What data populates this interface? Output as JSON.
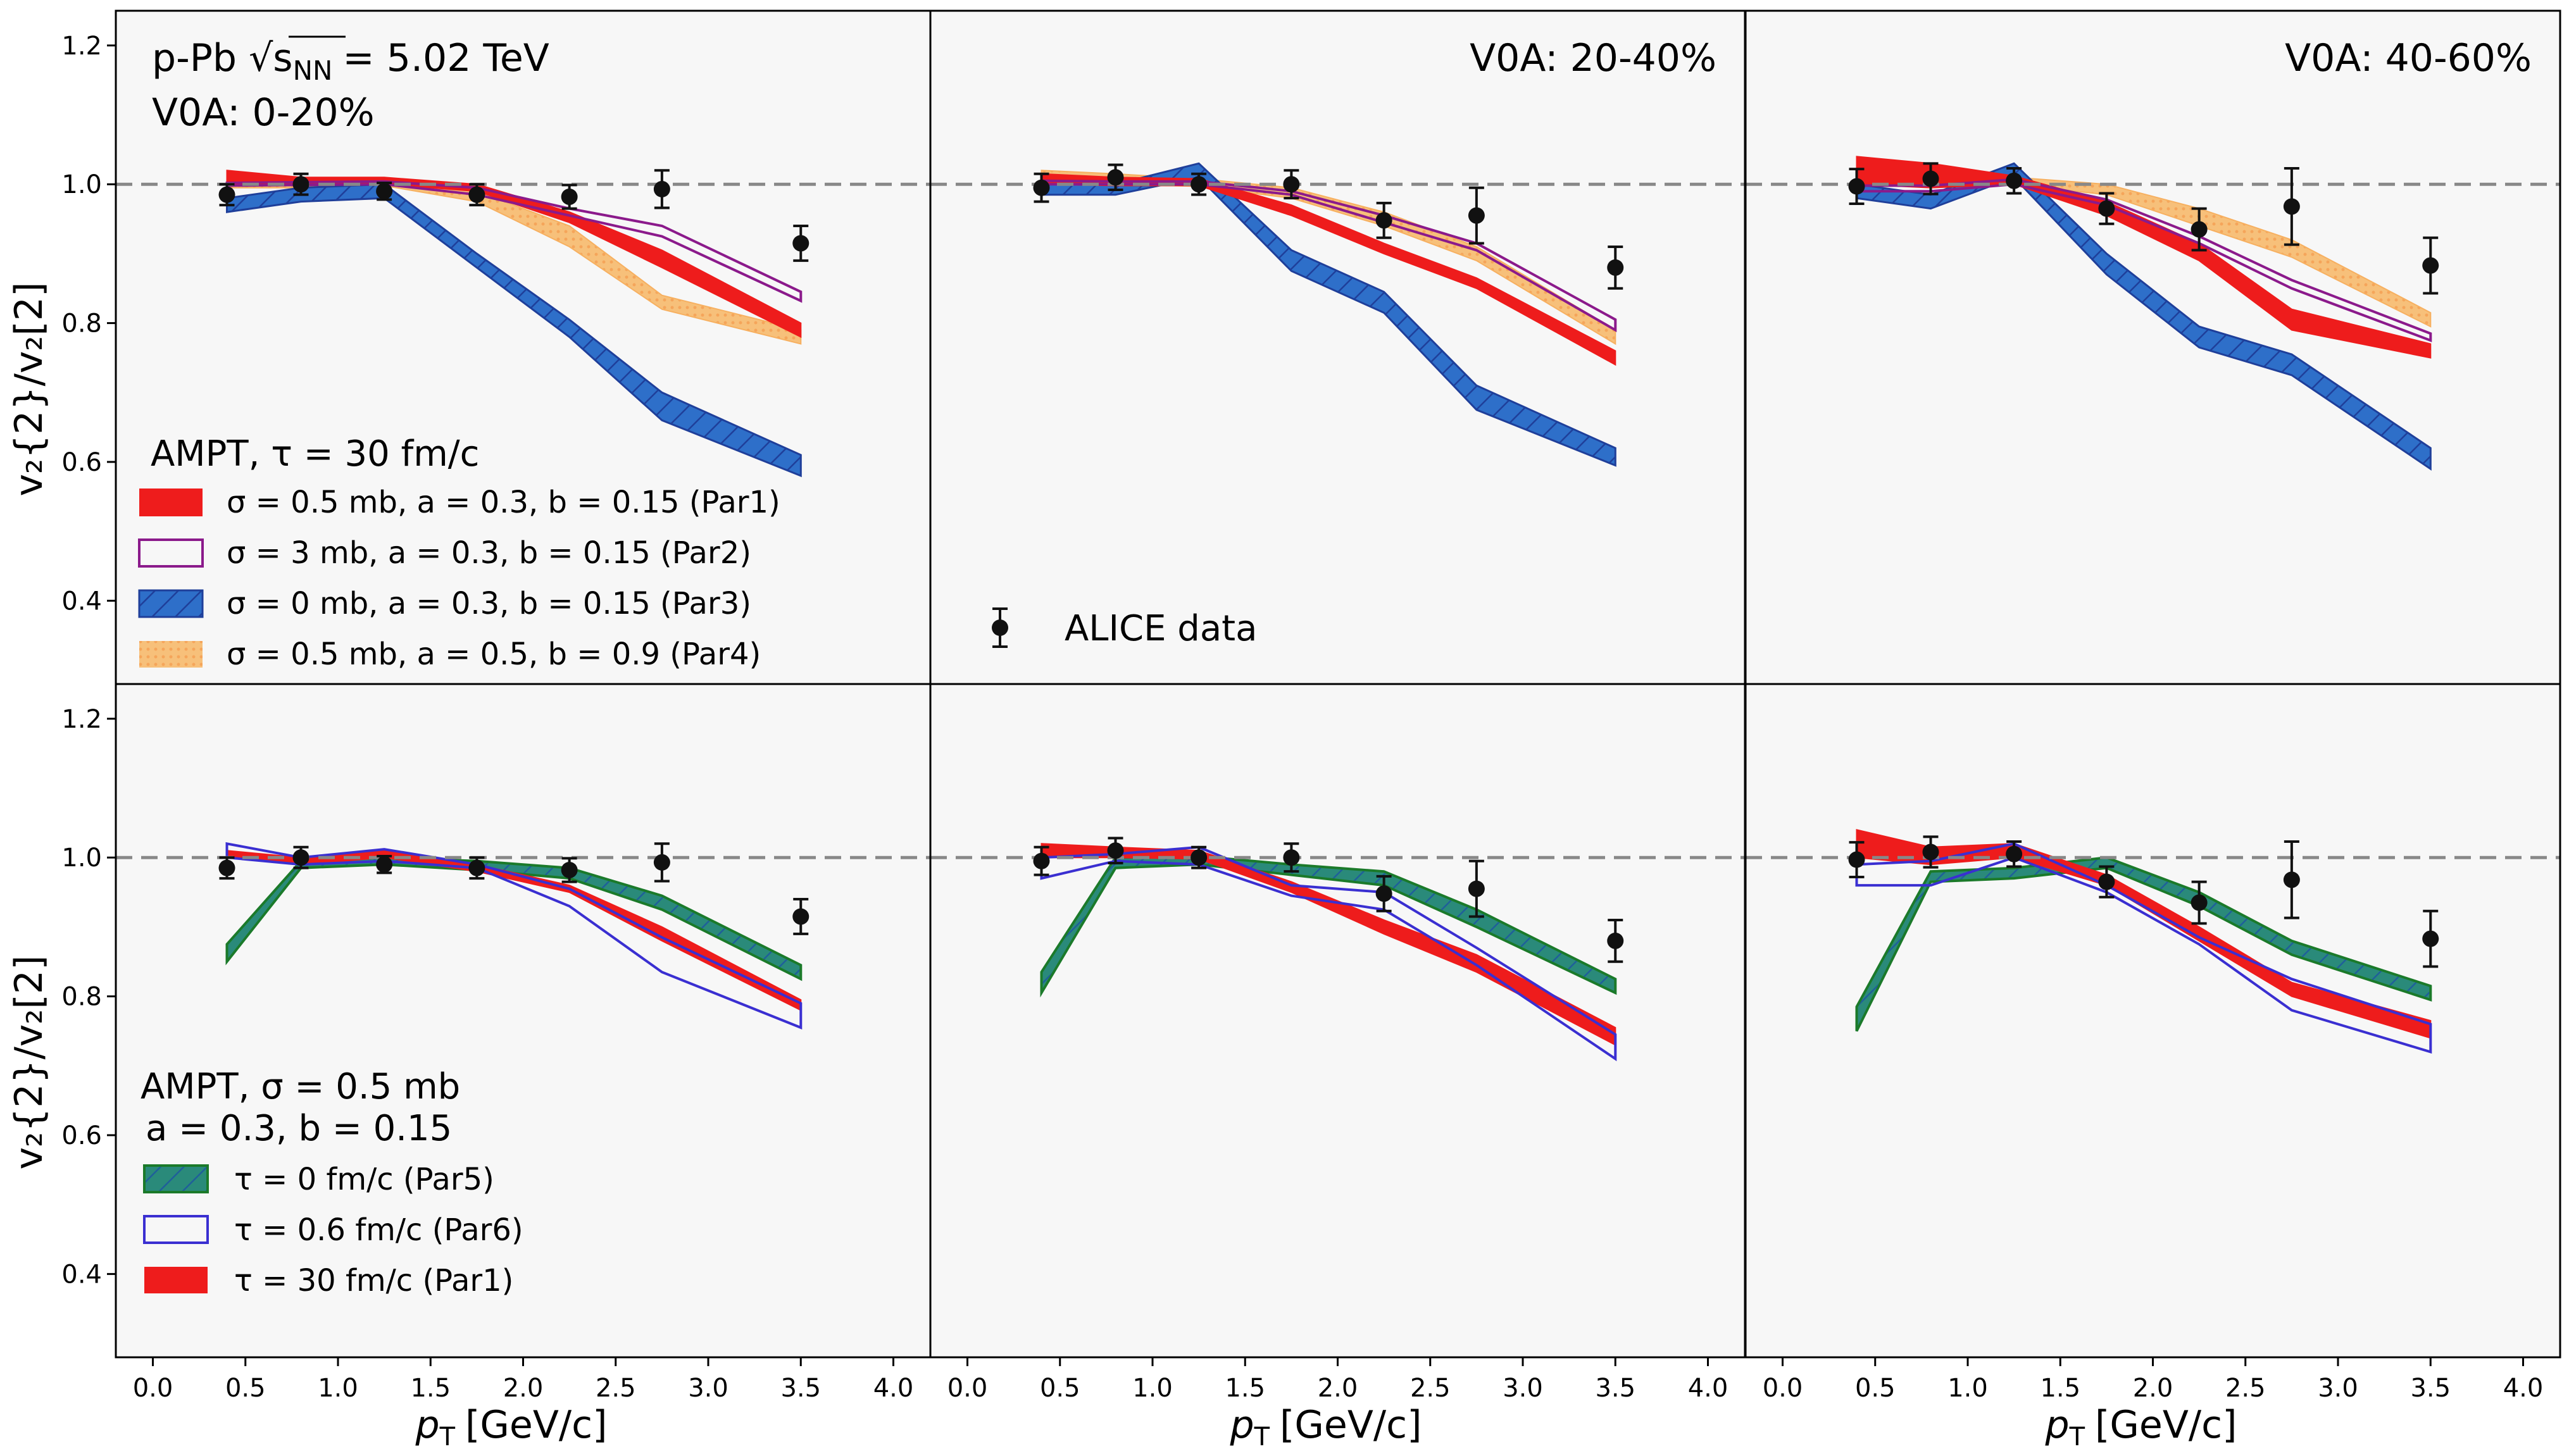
{
  "chart_data": {
    "type": "line",
    "figure_annotation": {
      "line1": "p-Pb √s",
      "sub": "NN",
      "line1b": "= 5.02 TeV"
    },
    "xlabel": {
      "main": "p",
      "sub": "T",
      "rest": "[GeV/c]"
    },
    "ylabel": "v₂{2}/v₂[2]",
    "xlim": [
      -0.2,
      4.2
    ],
    "ylim": [
      0.28,
      1.25
    ],
    "xticks": [
      "0.0",
      "0.5",
      "1.0",
      "1.5",
      "2.0",
      "2.5",
      "3.0",
      "3.5",
      "4.0"
    ],
    "yticks": [
      "0.4",
      "0.6",
      "0.8",
      "1.0",
      "1.2"
    ],
    "reference_line": 1.0,
    "colors": {
      "par1": "#ee1c1c",
      "par2": "#8b1a8b",
      "par3": "#2e6fc9",
      "par3_edge": "#1f3f9a",
      "par4": "#f7c07a",
      "par5": "#2a8a7a",
      "par5_edge": "#1b7a2a",
      "par6": "#3a2fd1",
      "data": "#111111"
    },
    "legend_top": {
      "title": "AMPT, τ = 30 fm/c",
      "entries": [
        "σ = 0.5 mb, a = 0.3, b = 0.15 (Par1)",
        "σ = 3 mb, a = 0.3, b = 0.15 (Par2)",
        "σ = 0 mb, a = 0.3, b = 0.15 (Par3)",
        "σ = 0.5 mb, a = 0.5, b = 0.9 (Par4)"
      ]
    },
    "legend_bottom": {
      "title": "AMPT, σ = 0.5 mb",
      "title2": "a = 0.3, b = 0.15",
      "entries": [
        "τ = 0 fm/c (Par5)",
        "τ = 0.6 fm/c (Par6)",
        "τ = 30 fm/c (Par1)"
      ]
    },
    "data_legend": "ALICE data",
    "panels": [
      {
        "label": "V0A: 0-20%",
        "row": 0,
        "col": 0,
        "data": {
          "x": [
            0.4,
            0.8,
            1.25,
            1.75,
            2.25,
            2.75,
            3.5
          ],
          "y": [
            0.985,
            1.0,
            0.99,
            0.985,
            0.982,
            0.993,
            0.915
          ],
          "err": [
            0.015,
            0.015,
            0.012,
            0.015,
            0.017,
            0.027,
            0.025
          ]
        },
        "bands": [
          {
            "id": "par4",
            "style": "fill",
            "x": [
              0.4,
              0.8,
              1.25,
              1.75,
              2.25,
              2.75,
              3.5
            ],
            "lo": [
              0.995,
              0.995,
              0.998,
              0.975,
              0.91,
              0.82,
              0.77
            ],
            "hi": [
              1.01,
              1.007,
              1.008,
              0.99,
              0.94,
              0.84,
              0.79
            ]
          },
          {
            "id": "par3",
            "style": "hatch",
            "x": [
              0.4,
              0.8,
              1.25,
              1.75,
              2.25,
              2.75,
              3.5
            ],
            "lo": [
              0.96,
              0.975,
              0.98,
              0.88,
              0.78,
              0.66,
              0.58
            ],
            "hi": [
              0.98,
              0.995,
              1.0,
              0.9,
              0.805,
              0.7,
              0.61
            ]
          },
          {
            "id": "par1",
            "style": "fill",
            "x": [
              0.4,
              0.8,
              1.25,
              1.75,
              2.25,
              2.75,
              3.5
            ],
            "lo": [
              1.0,
              0.998,
              1.0,
              0.99,
              0.945,
              0.88,
              0.78
            ],
            "hi": [
              1.02,
              1.01,
              1.01,
              1.0,
              0.96,
              0.905,
              0.8
            ]
          },
          {
            "id": "par2",
            "style": "outline",
            "x": [
              0.4,
              0.8,
              1.25,
              1.75,
              2.25,
              2.75,
              3.5
            ],
            "lo": [
              0.998,
              0.999,
              1.0,
              0.985,
              0.955,
              0.925,
              0.832
            ],
            "hi": [
              1.002,
              1.003,
              1.004,
              0.995,
              0.965,
              0.94,
              0.845
            ]
          }
        ]
      },
      {
        "label": "V0A: 20-40%",
        "row": 0,
        "col": 1,
        "data": {
          "x": [
            0.4,
            0.8,
            1.25,
            1.75,
            2.25,
            2.75,
            3.5
          ],
          "y": [
            0.995,
            1.01,
            1.0,
            1.0,
            0.948,
            0.955,
            0.88
          ],
          "err": [
            0.02,
            0.018,
            0.015,
            0.02,
            0.025,
            0.04,
            0.03
          ]
        },
        "bands": [
          {
            "id": "par4",
            "style": "fill",
            "x": [
              0.4,
              0.8,
              1.25,
              1.75,
              2.25,
              2.75,
              3.5
            ],
            "lo": [
              1.0,
              1.0,
              0.997,
              0.98,
              0.94,
              0.89,
              0.77
            ],
            "hi": [
              1.02,
              1.015,
              1.008,
              0.995,
              0.96,
              0.91,
              0.79
            ]
          },
          {
            "id": "par3",
            "style": "hatch",
            "x": [
              0.4,
              0.8,
              1.25,
              1.75,
              2.25,
              2.75,
              3.5
            ],
            "lo": [
              0.985,
              0.985,
              1.01,
              0.875,
              0.815,
              0.675,
              0.595
            ],
            "hi": [
              1.005,
              1.0,
              1.03,
              0.905,
              0.845,
              0.71,
              0.62
            ]
          },
          {
            "id": "par1",
            "style": "fill",
            "x": [
              0.4,
              0.8,
              1.25,
              1.75,
              2.25,
              2.75,
              3.5
            ],
            "lo": [
              1.0,
              0.998,
              0.998,
              0.955,
              0.9,
              0.85,
              0.74
            ],
            "hi": [
              1.015,
              1.01,
              1.008,
              0.97,
              0.915,
              0.865,
              0.76
            ]
          },
          {
            "id": "par2",
            "style": "outline",
            "x": [
              0.4,
              0.8,
              1.25,
              1.75,
              2.25,
              2.75,
              3.5
            ],
            "lo": [
              1.0,
              1.0,
              1.0,
              0.985,
              0.945,
              0.905,
              0.79
            ],
            "hi": [
              1.005,
              1.004,
              1.004,
              0.99,
              0.955,
              0.915,
              0.805
            ]
          }
        ]
      },
      {
        "label": "V0A: 40-60%",
        "row": 0,
        "col": 2,
        "data": {
          "x": [
            0.4,
            0.8,
            1.25,
            1.75,
            2.25,
            2.75,
            3.5
          ],
          "y": [
            0.997,
            1.008,
            1.005,
            0.965,
            0.935,
            0.968,
            0.883
          ],
          "err": [
            0.025,
            0.022,
            0.018,
            0.022,
            0.03,
            0.055,
            0.04
          ]
        },
        "bands": [
          {
            "id": "par4",
            "style": "fill",
            "x": [
              0.4,
              0.8,
              1.25,
              1.75,
              2.25,
              2.75,
              3.5
            ],
            "lo": [
              1.0,
              0.998,
              1.0,
              0.985,
              0.94,
              0.895,
              0.795
            ],
            "hi": [
              1.02,
              1.01,
              1.01,
              1.0,
              0.965,
              0.92,
              0.815
            ]
          },
          {
            "id": "par3",
            "style": "hatch",
            "x": [
              0.4,
              0.8,
              1.25,
              1.75,
              2.25,
              2.75,
              3.5
            ],
            "lo": [
              0.98,
              0.965,
              1.01,
              0.87,
              0.765,
              0.725,
              0.59
            ],
            "hi": [
              1.0,
              0.985,
              1.03,
              0.9,
              0.795,
              0.755,
              0.62
            ]
          },
          {
            "id": "par1",
            "style": "fill",
            "x": [
              0.4,
              0.8,
              1.25,
              1.75,
              2.25,
              2.75,
              3.5
            ],
            "lo": [
              1.0,
              0.995,
              1.0,
              0.955,
              0.89,
              0.79,
              0.75
            ],
            "hi": [
              1.04,
              1.03,
              1.012,
              0.975,
              0.915,
              0.82,
              0.77
            ]
          },
          {
            "id": "par2",
            "style": "outline",
            "x": [
              0.4,
              0.8,
              1.25,
              1.75,
              2.25,
              2.75,
              3.5
            ],
            "lo": [
              0.99,
              0.99,
              1.0,
              0.97,
              0.915,
              0.85,
              0.775
            ],
            "hi": [
              0.998,
              0.998,
              1.007,
              0.978,
              0.925,
              0.862,
              0.785
            ]
          }
        ]
      },
      {
        "label": "",
        "row": 1,
        "col": 0,
        "data": {
          "x": [
            0.4,
            0.8,
            1.25,
            1.75,
            2.25,
            2.75,
            3.5
          ],
          "y": [
            0.985,
            1.0,
            0.99,
            0.985,
            0.982,
            0.993,
            0.915
          ],
          "err": [
            0.015,
            0.015,
            0.012,
            0.015,
            0.017,
            0.027,
            0.025
          ]
        },
        "bands": [
          {
            "id": "par5",
            "style": "hatch2",
            "x": [
              0.4,
              0.8,
              1.25,
              1.75,
              2.25,
              2.75,
              3.5
            ],
            "lo": [
              0.85,
              0.985,
              0.99,
              0.982,
              0.97,
              0.925,
              0.825
            ],
            "hi": [
              0.875,
              0.995,
              1.0,
              0.995,
              0.985,
              0.945,
              0.845
            ]
          },
          {
            "id": "par1",
            "style": "fill",
            "x": [
              0.4,
              0.8,
              1.25,
              1.75,
              2.25,
              2.75,
              3.5
            ],
            "lo": [
              1.0,
              0.99,
              1.0,
              0.98,
              0.95,
              0.88,
              0.78
            ],
            "hi": [
              1.01,
              1.0,
              1.01,
              0.99,
              0.96,
              0.9,
              0.795
            ]
          },
          {
            "id": "par6",
            "style": "outline",
            "x": [
              0.4,
              0.8,
              1.25,
              1.75,
              2.25,
              2.75,
              3.5
            ],
            "lo": [
              1.0,
              0.99,
              0.995,
              0.985,
              0.93,
              0.835,
              0.755
            ],
            "hi": [
              1.02,
              1.0,
              1.012,
              0.99,
              0.955,
              0.885,
              0.79
            ]
          }
        ]
      },
      {
        "label": "",
        "row": 1,
        "col": 1,
        "data": {
          "x": [
            0.4,
            0.8,
            1.25,
            1.75,
            2.25,
            2.75,
            3.5
          ],
          "y": [
            0.995,
            1.01,
            1.0,
            1.0,
            0.948,
            0.955,
            0.88
          ],
          "err": [
            0.02,
            0.018,
            0.015,
            0.02,
            0.025,
            0.04,
            0.03
          ]
        },
        "bands": [
          {
            "id": "par5",
            "style": "hatch2",
            "x": [
              0.4,
              0.8,
              1.25,
              1.75,
              2.25,
              2.75,
              3.5
            ],
            "lo": [
              0.805,
              0.985,
              0.99,
              0.975,
              0.96,
              0.9,
              0.805
            ],
            "hi": [
              0.835,
              1.0,
              1.002,
              0.99,
              0.98,
              0.925,
              0.825
            ]
          },
          {
            "id": "par1",
            "style": "fill",
            "x": [
              0.4,
              0.8,
              1.25,
              1.75,
              2.25,
              2.75,
              3.5
            ],
            "lo": [
              1.0,
              1.0,
              0.998,
              0.95,
              0.89,
              0.835,
              0.73
            ],
            "hi": [
              1.02,
              1.015,
              1.01,
              0.965,
              0.91,
              0.86,
              0.755
            ]
          },
          {
            "id": "par6",
            "style": "outline",
            "x": [
              0.4,
              0.8,
              1.25,
              1.75,
              2.25,
              2.75,
              3.5
            ],
            "lo": [
              0.97,
              0.995,
              0.99,
              0.945,
              0.925,
              0.845,
              0.71
            ],
            "hi": [
              1.0,
              1.005,
              1.015,
              0.96,
              0.95,
              0.87,
              0.745
            ]
          }
        ]
      },
      {
        "label": "",
        "row": 1,
        "col": 2,
        "data": {
          "x": [
            0.4,
            0.8,
            1.25,
            1.75,
            2.25,
            2.75,
            3.5
          ],
          "y": [
            0.997,
            1.008,
            1.005,
            0.965,
            0.935,
            0.968,
            0.883
          ],
          "err": [
            0.025,
            0.022,
            0.018,
            0.022,
            0.03,
            0.055,
            0.04
          ]
        },
        "bands": [
          {
            "id": "par5",
            "style": "hatch2",
            "x": [
              0.4,
              0.8,
              1.25,
              1.75,
              2.25,
              2.75,
              3.5
            ],
            "lo": [
              0.75,
              0.965,
              0.97,
              0.985,
              0.93,
              0.86,
              0.795
            ],
            "hi": [
              0.785,
              0.98,
              0.985,
              1.0,
              0.95,
              0.88,
              0.815
            ]
          },
          {
            "id": "par1",
            "style": "fill",
            "x": [
              0.4,
              0.8,
              1.25,
              1.75,
              2.25,
              2.75,
              3.5
            ],
            "lo": [
              1.0,
              0.99,
              1.0,
              0.96,
              0.88,
              0.8,
              0.74
            ],
            "hi": [
              1.04,
              1.015,
              1.02,
              0.975,
              0.9,
              0.82,
              0.765
            ]
          },
          {
            "id": "par6",
            "style": "outline",
            "x": [
              0.4,
              0.8,
              1.25,
              1.75,
              2.25,
              2.75,
              3.5
            ],
            "lo": [
              0.96,
              0.96,
              1.0,
              0.95,
              0.875,
              0.78,
              0.72
            ],
            "hi": [
              0.99,
              0.995,
              1.02,
              0.96,
              0.885,
              0.825,
              0.76
            ]
          }
        ]
      }
    ]
  }
}
